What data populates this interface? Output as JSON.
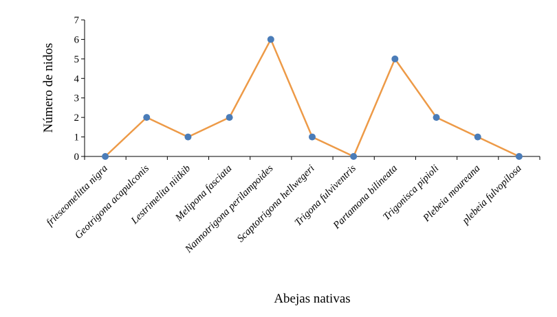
{
  "chart_data": {
    "type": "line",
    "categories": [
      "frieseomelitta nigra",
      "Geotrigona acapulconis",
      "Lestrimelita niitkib",
      "Melipona fasciata",
      "Nannotrigona perilampoides",
      "Scaptotrigona hellwegeri",
      "Trigona fulviventris",
      "Partamona bilineata",
      "Trigonisca pipioli",
      "Plebeia moureana",
      "plebeia fulvopilosa"
    ],
    "values": [
      0,
      2,
      1,
      2,
      6,
      1,
      0,
      5,
      2,
      1,
      0
    ],
    "xlabel": "Abejas nativas",
    "ylabel": "Número de nidos",
    "ylim": [
      0,
      7
    ],
    "yticks": [
      "0",
      "1",
      "2",
      "3",
      "4",
      "5",
      "6",
      "7"
    ],
    "grid": false,
    "legend": "none",
    "line_color": "#ED9A47",
    "marker_color": "#4A7CB8"
  }
}
